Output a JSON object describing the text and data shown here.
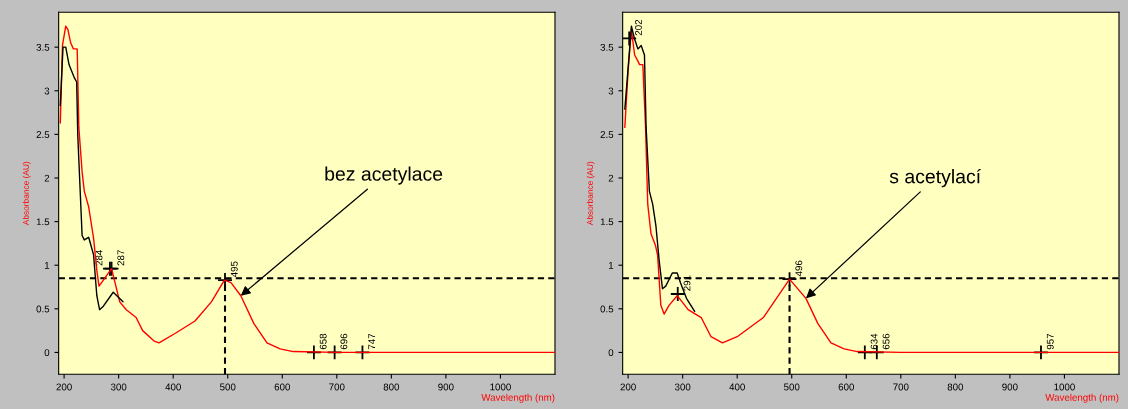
{
  "chart_data": [
    {
      "type": "line",
      "xlabel": "Wavelength (nm)",
      "ylabel": "Absorbance (AU)",
      "xlim": [
        190,
        1100
      ],
      "ylim": [
        -0.25,
        3.9
      ],
      "xticks": [
        200,
        300,
        400,
        500,
        600,
        700,
        800,
        900,
        1000
      ],
      "yticks": [
        0,
        0.5,
        1,
        1.5,
        2,
        2.5,
        3,
        3.5
      ],
      "grid": false,
      "legend": false,
      "marker": "none",
      "line_style": "solid",
      "series": [
        {
          "color": "#ff0000",
          "x": [
            193,
            197,
            203,
            207,
            212,
            217,
            224,
            227,
            233,
            237,
            245,
            254,
            260,
            264,
            272,
            287,
            302,
            314,
            332,
            344,
            365,
            374,
            404,
            440,
            470,
            494,
            506,
            524,
            548,
            572,
            596,
            620,
            700,
            800,
            900,
            1000,
            1100
          ],
          "values": [
            2.63,
            3.52,
            3.74,
            3.7,
            3.55,
            3.48,
            3.48,
            2.58,
            2.07,
            1.85,
            1.67,
            1.31,
            0.94,
            0.76,
            0.83,
            0.96,
            0.58,
            0.49,
            0.4,
            0.25,
            0.13,
            0.11,
            0.22,
            0.36,
            0.58,
            0.83,
            0.8,
            0.65,
            0.33,
            0.11,
            0.04,
            0.01,
            0,
            0,
            0,
            0,
            0
          ]
        },
        {
          "color": "#000000",
          "x": [
            193,
            198,
            203,
            209,
            218,
            223,
            225,
            229,
            233,
            237,
            245,
            254,
            260,
            265,
            272,
            290,
            308
          ],
          "values": [
            2.83,
            3.5,
            3.5,
            3.3,
            3.16,
            3.1,
            2.5,
            1.92,
            1.34,
            1.29,
            1.32,
            1.12,
            0.65,
            0.49,
            0.53,
            0.69,
            0.58
          ]
        }
      ],
      "ref_lines": [
        {
          "axis": "y",
          "value": 0.85,
          "color": "#000000",
          "line_style": "dashed"
        },
        {
          "axis": "x",
          "value": 495,
          "color": "#000000",
          "line_style": "dashed"
        }
      ],
      "annotations": [
        {
          "text": "284",
          "x": 284,
          "y": 0.96
        },
        {
          "text": "287",
          "x": 287,
          "y": 0.96
        },
        {
          "text": "495",
          "x": 495,
          "y": 0.83
        },
        {
          "text": "658",
          "x": 658,
          "y": 0
        },
        {
          "text": "696",
          "x": 696,
          "y": 0
        },
        {
          "text": "747",
          "x": 747,
          "y": 0
        },
        {
          "text": "bez acetylace",
          "x": 524,
          "y": 0.65
        }
      ]
    },
    {
      "type": "line",
      "xlabel": "Wavelength (nm)",
      "ylabel": "Absorbance (AU)",
      "xlim": [
        190,
        1100
      ],
      "ylim": [
        -0.25,
        3.9
      ],
      "xticks": [
        200,
        300,
        400,
        500,
        600,
        700,
        800,
        900,
        1000
      ],
      "yticks": [
        0,
        0.5,
        1,
        1.5,
        2,
        2.5,
        3,
        3.5
      ],
      "grid": false,
      "legend": false,
      "marker": "none",
      "line_style": "solid",
      "series": [
        {
          "color": "#ff0000",
          "x": [
            194,
            200,
            206,
            212,
            218,
            221,
            227,
            232,
            236,
            242,
            250,
            254,
            260,
            266,
            275,
            290,
            299,
            310,
            334,
            352,
            373,
            400,
            448,
            496,
            526,
            548,
            572,
            596,
            620,
            700,
            800,
            900,
            1000,
            1100
          ],
          "values": [
            2.58,
            3.23,
            3.7,
            3.41,
            3.34,
            3.3,
            3.3,
            2.58,
            1.7,
            1.36,
            1.23,
            1.12,
            0.54,
            0.44,
            0.54,
            0.65,
            0.58,
            0.49,
            0.4,
            0.18,
            0.11,
            0.18,
            0.4,
            0.84,
            0.62,
            0.33,
            0.11,
            0.04,
            0.01,
            0,
            0,
            0,
            0,
            0
          ]
        },
        {
          "color": "#000000",
          "x": [
            194,
            200,
            206,
            212,
            218,
            224,
            230,
            233,
            239,
            245,
            251,
            257,
            263,
            269,
            281,
            290,
            296,
            307,
            322
          ],
          "values": [
            2.79,
            3.26,
            3.74,
            3.59,
            3.48,
            3.52,
            3.41,
            2.58,
            1.85,
            1.7,
            1.45,
            1.05,
            0.73,
            0.76,
            0.91,
            0.91,
            0.8,
            0.62,
            0.47
          ]
        }
      ],
      "ref_lines": [
        {
          "axis": "y",
          "value": 0.85,
          "color": "#000000",
          "line_style": "dashed"
        },
        {
          "axis": "x",
          "value": 496,
          "color": "#000000",
          "line_style": "dashed"
        }
      ],
      "annotations": [
        {
          "text": "202",
          "x": 202,
          "y": 3.6
        },
        {
          "text": "291",
          "x": 291,
          "y": 0.67
        },
        {
          "text": "496",
          "x": 496,
          "y": 0.84
        },
        {
          "text": "634",
          "x": 634,
          "y": 0
        },
        {
          "text": "656",
          "x": 656,
          "y": 0
        },
        {
          "text": "957",
          "x": 957,
          "y": 0
        },
        {
          "text": "s acetylací",
          "x": 526,
          "y": 0.62
        }
      ]
    }
  ]
}
